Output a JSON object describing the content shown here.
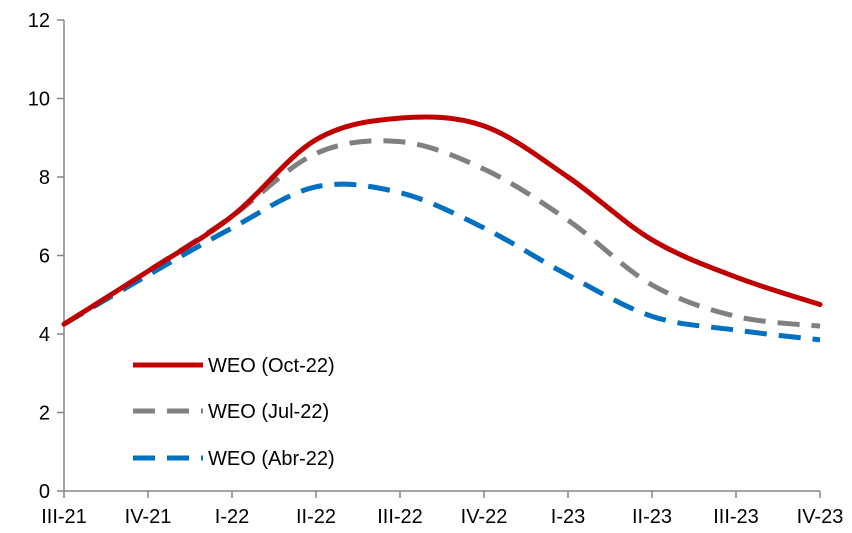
{
  "chart_data": {
    "type": "line",
    "title": "",
    "xlabel": "",
    "ylabel": "",
    "categories": [
      "III-21",
      "IV-21",
      "I-22",
      "II-22",
      "III-22",
      "IV-22",
      "I-23",
      "II-23",
      "III-23",
      "IV-23"
    ],
    "ylim": [
      0,
      12
    ],
    "yticks": [
      0,
      2,
      4,
      6,
      8,
      10,
      12
    ],
    "grid": false,
    "legend_position": "bottom-left",
    "series": [
      {
        "name": "WEO (Oct-22)",
        "color": "#c00000",
        "style": "solid",
        "values": [
          4.25,
          5.6,
          7.0,
          8.95,
          9.5,
          9.3,
          8.0,
          6.4,
          5.45,
          4.75
        ]
      },
      {
        "name": "WEO (Jul-22)",
        "color": "#808080",
        "style": "dashed",
        "values": [
          4.25,
          5.6,
          7.0,
          8.6,
          8.9,
          8.2,
          6.9,
          5.25,
          4.45,
          4.2
        ]
      },
      {
        "name": "WEO (Abr-22)",
        "color": "#0070c0",
        "style": "dashed",
        "values": [
          4.25,
          5.5,
          6.7,
          7.75,
          7.6,
          6.7,
          5.5,
          4.45,
          4.1,
          3.85
        ]
      }
    ]
  }
}
